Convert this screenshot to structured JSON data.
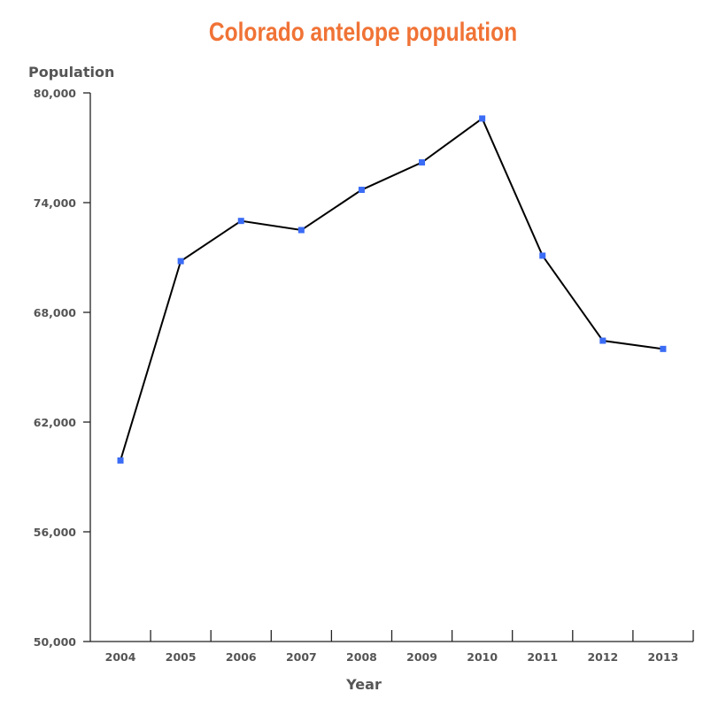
{
  "chart_data": {
    "type": "line",
    "title": "Colorado antelope population",
    "xlabel": "Year",
    "ylabel": "Population",
    "categories": [
      "2004",
      "2005",
      "2006",
      "2007",
      "2008",
      "2009",
      "2010",
      "2011",
      "2012",
      "2013"
    ],
    "series": [
      {
        "values": [
          59900,
          70800,
          73000,
          72500,
          74700,
          76200,
          78600,
          71100,
          66450,
          66000
        ]
      }
    ],
    "ylim": [
      50000,
      80000
    ],
    "yticks": [
      50000,
      56000,
      62000,
      68000,
      74000,
      80000
    ],
    "ytick_labels": [
      "50,000",
      "56,000",
      "62,000",
      "68,000",
      "74,000",
      "80,000"
    ],
    "grid": false,
    "colors": {
      "title": "#f07336",
      "line": "#000000",
      "marker": "#3b6cf5",
      "axis": "#222222"
    }
  }
}
